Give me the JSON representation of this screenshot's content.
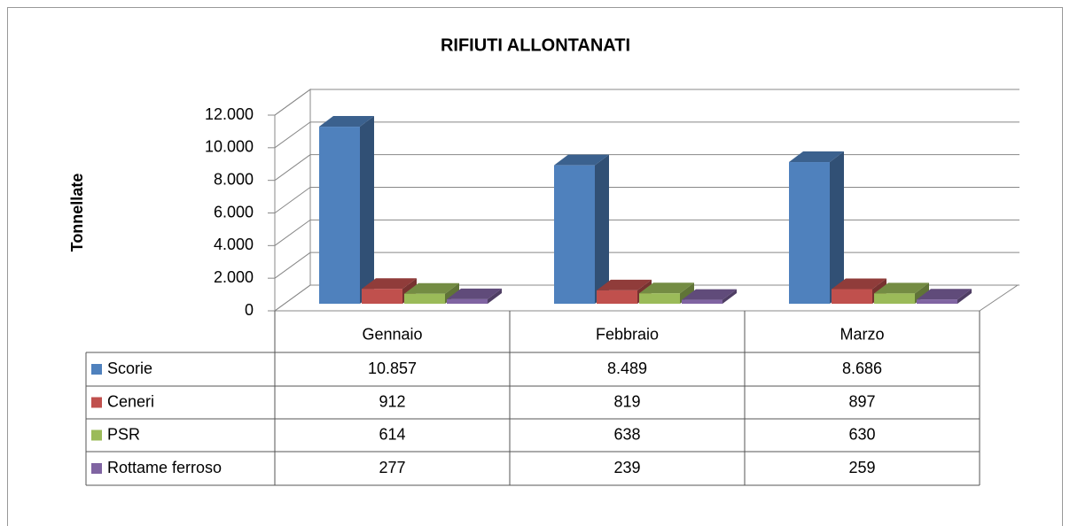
{
  "chart_data": {
    "type": "bar3d",
    "title": "RIFIUTI ALLONTANATI",
    "y_label": "Tonnellate",
    "categories": [
      "Gennaio",
      "Febbraio",
      "Marzo"
    ],
    "series": [
      {
        "name": "Scorie",
        "color": "#4f81bd",
        "values": [
          10857,
          8489,
          8686
        ],
        "value_labels": [
          "10.857",
          "8.489",
          "8.686"
        ]
      },
      {
        "name": "Ceneri",
        "color": "#c0504d",
        "values": [
          912,
          819,
          897
        ],
        "value_labels": [
          "912",
          "819",
          "897"
        ]
      },
      {
        "name": "PSR",
        "color": "#9bbb59",
        "values": [
          614,
          638,
          630
        ],
        "value_labels": [
          "614",
          "638",
          "630"
        ]
      },
      {
        "name": "Rottame ferroso",
        "color": "#8064a2",
        "values": [
          277,
          239,
          259
        ],
        "value_labels": [
          "277",
          "239",
          "259"
        ]
      }
    ],
    "ylim": [
      0,
      12000
    ],
    "yticks": [
      0,
      {
        "value": 2000,
        "label": "2.000"
      },
      {
        "value": 4000,
        "label": "4.000"
      },
      {
        "value": 6000,
        "label": "6.000"
      },
      {
        "value": 8000,
        "label": "8.000"
      },
      {
        "value": 10000,
        "label": "10.000"
      },
      {
        "value": 12000,
        "label": "12.000"
      }
    ],
    "grid": true,
    "data_table": true
  }
}
